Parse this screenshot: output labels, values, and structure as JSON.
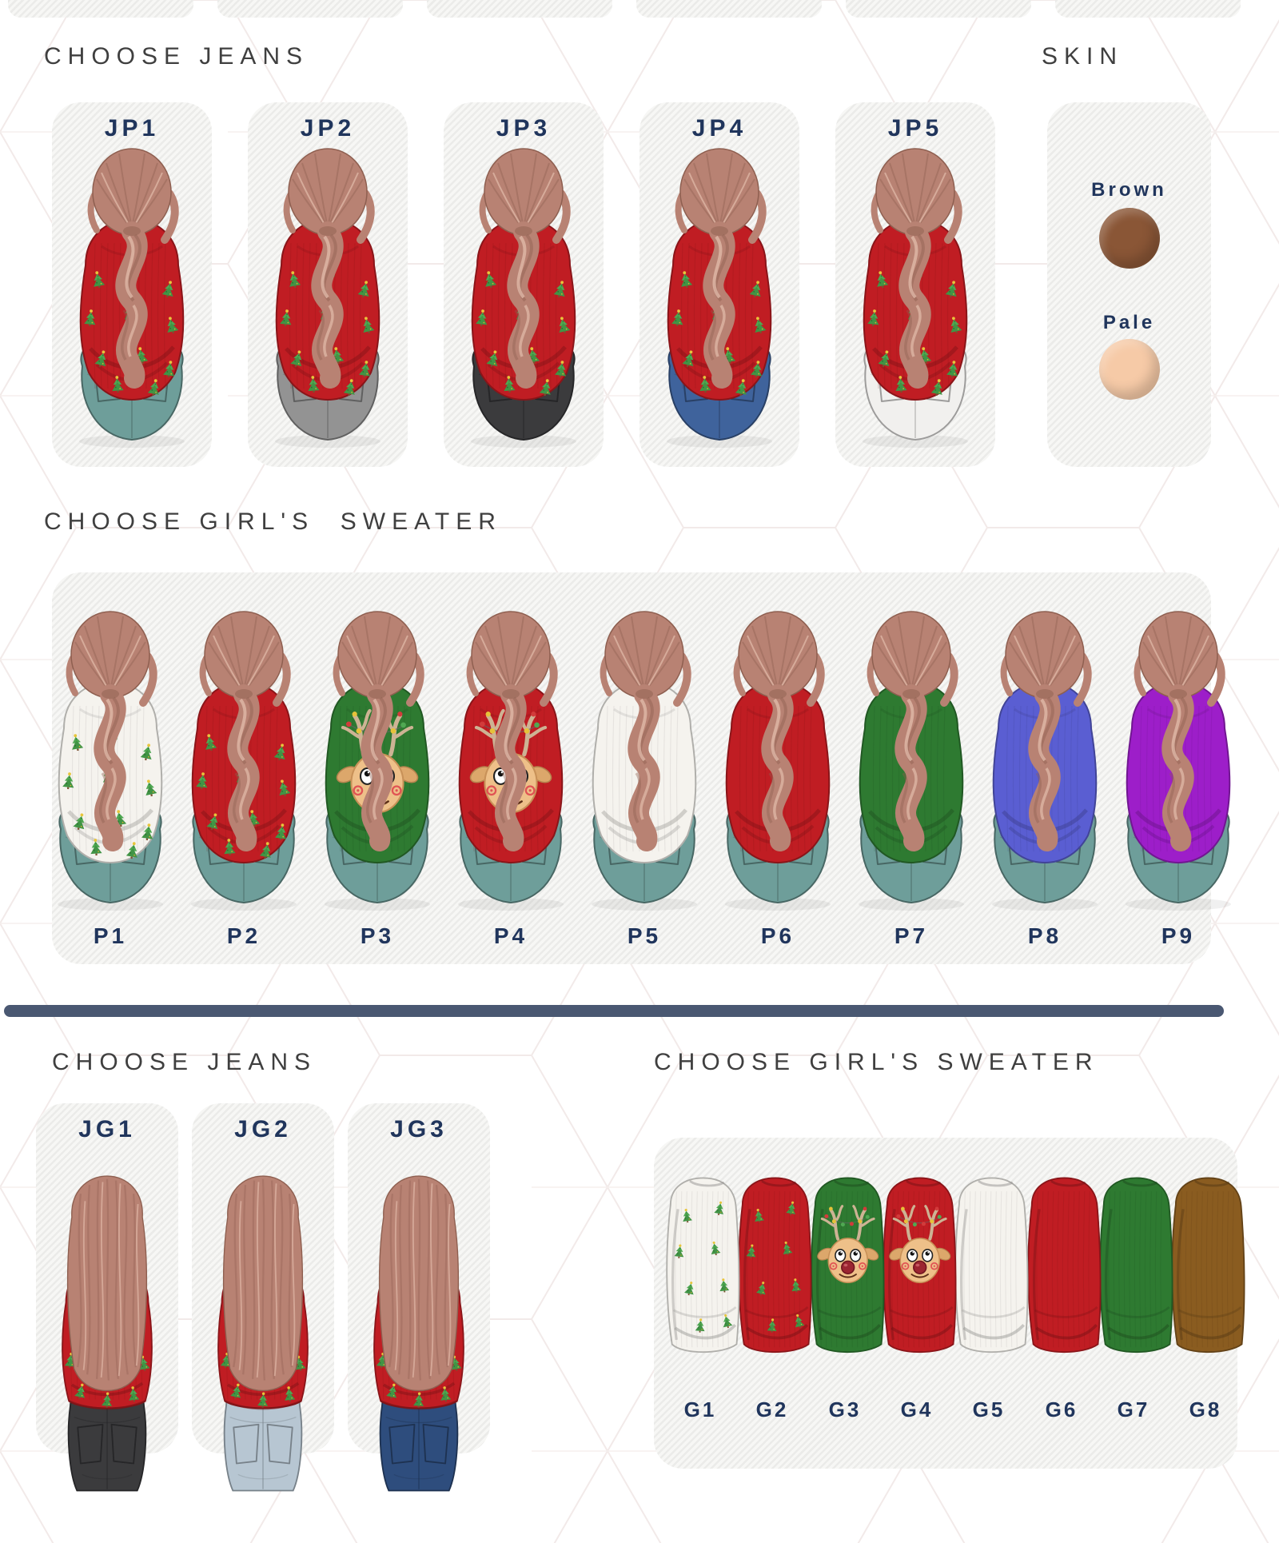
{
  "page": {
    "background": "#ffffff",
    "card_fill": "#ebebe9",
    "card_stripe": "#f7f7f5",
    "hex_line_color": "#f2eae9",
    "label_navy": "#20355c",
    "title_gray": "#3f3f3f",
    "divider_navy": "#4a5872",
    "hair_base": "#b88273",
    "hair_shadow": "#8e5f50",
    "hair_highlight": "#e3bcab",
    "red_sweater": "#c01d23",
    "teal_jeans": "#6e9e9a"
  },
  "sections": {
    "top_jeans": {
      "title": "CHOOSE JEANS",
      "options": [
        {
          "label": "JP1",
          "jeans_color": "#6e9e9a"
        },
        {
          "label": "JP2",
          "jeans_color": "#939393"
        },
        {
          "label": "JP3",
          "jeans_color": "#3b3b3d"
        },
        {
          "label": "JP4",
          "jeans_color": "#3f639c"
        },
        {
          "label": "JP5",
          "jeans_color": "#f1f0ee"
        }
      ]
    },
    "skin": {
      "title": "SKIN",
      "options": [
        {
          "label": "Brown",
          "color": "#8a5636"
        },
        {
          "label": "Pale",
          "color": "#f6caa7"
        }
      ]
    },
    "seated_sweaters": {
      "title": "CHOOSE GIRL'S  SWEATER",
      "options": [
        {
          "label": "P1",
          "color": "#f5f3ee",
          "pattern": "christmas-trees"
        },
        {
          "label": "P2",
          "color": "#c01d23",
          "pattern": "christmas-trees"
        },
        {
          "label": "P3",
          "color": "#2e7a31",
          "pattern": "reindeer"
        },
        {
          "label": "P4",
          "color": "#c01d23",
          "pattern": "reindeer"
        },
        {
          "label": "P5",
          "color": "#f5f3ee",
          "pattern": "plain"
        },
        {
          "label": "P6",
          "color": "#c01d23",
          "pattern": "plain"
        },
        {
          "label": "P7",
          "color": "#2e7a31",
          "pattern": "plain"
        },
        {
          "label": "P8",
          "color": "#5a5ed2",
          "pattern": "plain"
        },
        {
          "label": "P9",
          "color": "#9d1ec9",
          "pattern": "plain"
        }
      ]
    },
    "bottom_jeans": {
      "title": "CHOOSE JEANS",
      "options": [
        {
          "label": "JG1",
          "jeans_color": "#3b3b3d"
        },
        {
          "label": "JG2",
          "jeans_color": "#b7c6d2"
        },
        {
          "label": "JG3",
          "jeans_color": "#2e4d7d"
        }
      ]
    },
    "hanging_sweaters": {
      "title": "CHOOSE GIRL'S SWEATER",
      "options": [
        {
          "label": "G1",
          "color": "#f5f3ee",
          "pattern": "christmas-trees"
        },
        {
          "label": "G2",
          "color": "#c01d23",
          "pattern": "christmas-trees"
        },
        {
          "label": "G3",
          "color": "#2e7a31",
          "pattern": "reindeer"
        },
        {
          "label": "G4",
          "color": "#c01d23",
          "pattern": "reindeer"
        },
        {
          "label": "G5",
          "color": "#f5f3ee",
          "pattern": "plain"
        },
        {
          "label": "G6",
          "color": "#c01d23",
          "pattern": "plain"
        },
        {
          "label": "G7",
          "color": "#2e7a31",
          "pattern": "plain"
        },
        {
          "label": "G8",
          "color": "#8a5c20",
          "pattern": "plain"
        }
      ]
    }
  }
}
